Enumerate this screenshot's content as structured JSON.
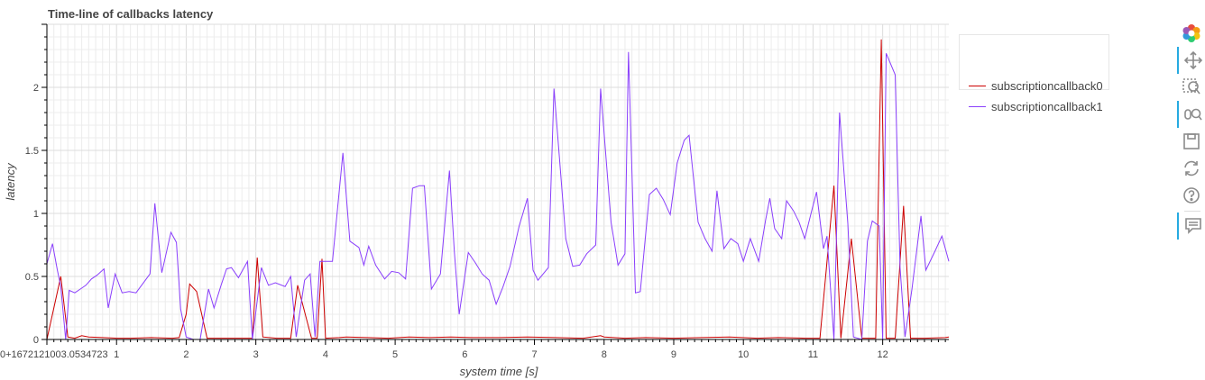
{
  "chart_data": {
    "type": "line",
    "title": "Time-line of callbacks latency",
    "xlabel": "system time [s]",
    "ylabel": "latency",
    "xlim": [
      0,
      12.95
    ],
    "ylim": [
      0,
      2.5
    ],
    "x_tick_labels": [
      "0+1672121003.0534723",
      "1",
      "2",
      "3",
      "4",
      "5",
      "6",
      "7",
      "8",
      "9",
      "10",
      "11",
      "12"
    ],
    "y_tick_labels": [
      "0",
      "0.5",
      "1",
      "1.5",
      "2"
    ],
    "grid": true,
    "legend_position": "top-right",
    "series": [
      {
        "name": "subscriptioncallback0",
        "color": "#cc0000",
        "points": [
          [
            0.0,
            0
          ],
          [
            0.2,
            0.5
          ],
          [
            0.3,
            0.02
          ],
          [
            0.4,
            0.01
          ],
          [
            0.5,
            0.03
          ],
          [
            0.6,
            0.02
          ],
          [
            0.8,
            0.015
          ],
          [
            1.0,
            0.01
          ],
          [
            1.2,
            0.01
          ],
          [
            1.5,
            0.015
          ],
          [
            1.8,
            0.01
          ],
          [
            1.9,
            0.015
          ],
          [
            2.0,
            0.2
          ],
          [
            2.05,
            0.44
          ],
          [
            2.15,
            0.38
          ],
          [
            2.3,
            0.01
          ],
          [
            2.6,
            0.01
          ],
          [
            2.95,
            0.01
          ],
          [
            3.02,
            0.65
          ],
          [
            3.1,
            0.02
          ],
          [
            3.3,
            0.01
          ],
          [
            3.5,
            0.01
          ],
          [
            3.6,
            0.43
          ],
          [
            3.8,
            0.01
          ],
          [
            3.88,
            0.01
          ],
          [
            3.95,
            0.64
          ],
          [
            4.0,
            0.01
          ],
          [
            4.2,
            0.015
          ],
          [
            4.3,
            0.02
          ],
          [
            4.6,
            0.015
          ],
          [
            4.9,
            0.01
          ],
          [
            5.2,
            0.02
          ],
          [
            5.5,
            0.015
          ],
          [
            5.8,
            0.02
          ],
          [
            6.1,
            0.015
          ],
          [
            6.5,
            0.015
          ],
          [
            6.9,
            0.02
          ],
          [
            7.3,
            0.015
          ],
          [
            7.7,
            0.01
          ],
          [
            7.95,
            0.03
          ],
          [
            8.0,
            0.02
          ],
          [
            8.3,
            0.01
          ],
          [
            8.6,
            0.015
          ],
          [
            9.0,
            0.01
          ],
          [
            9.4,
            0.015
          ],
          [
            9.8,
            0.02
          ],
          [
            10.2,
            0.01
          ],
          [
            10.5,
            0.015
          ],
          [
            10.9,
            0.01
          ],
          [
            11.1,
            0.01
          ],
          [
            11.3,
            1.22
          ],
          [
            11.4,
            0.01
          ],
          [
            11.55,
            0.8
          ],
          [
            11.7,
            0.01
          ],
          [
            11.9,
            0.01
          ],
          [
            11.98,
            2.38
          ],
          [
            12.05,
            0.01
          ],
          [
            12.18,
            0.01
          ],
          [
            12.3,
            1.06
          ],
          [
            12.4,
            0.01
          ],
          [
            12.6,
            0.01
          ],
          [
            12.9,
            0.015
          ],
          [
            12.95,
            0.02
          ]
        ]
      },
      {
        "name": "subscriptioncallback1",
        "color": "#8a3ffc",
        "points": [
          [
            0.0,
            0.6
          ],
          [
            0.08,
            0.76
          ],
          [
            0.15,
            0.55
          ],
          [
            0.2,
            0.42
          ],
          [
            0.27,
            0.0
          ],
          [
            0.32,
            0.39
          ],
          [
            0.4,
            0.37
          ],
          [
            0.48,
            0.4
          ],
          [
            0.56,
            0.43
          ],
          [
            0.64,
            0.48
          ],
          [
            0.72,
            0.51
          ],
          [
            0.82,
            0.56
          ],
          [
            0.88,
            0.25
          ],
          [
            0.98,
            0.52
          ],
          [
            1.08,
            0.37
          ],
          [
            1.18,
            0.38
          ],
          [
            1.28,
            0.37
          ],
          [
            1.48,
            0.52
          ],
          [
            1.55,
            1.08
          ],
          [
            1.65,
            0.53
          ],
          [
            1.78,
            0.85
          ],
          [
            1.86,
            0.77
          ],
          [
            1.92,
            0.24
          ],
          [
            2.0,
            0.02
          ],
          [
            2.1,
            0.0
          ],
          [
            2.2,
            0.0
          ],
          [
            2.32,
            0.4
          ],
          [
            2.4,
            0.25
          ],
          [
            2.5,
            0.43
          ],
          [
            2.58,
            0.56
          ],
          [
            2.65,
            0.57
          ],
          [
            2.75,
            0.49
          ],
          [
            2.88,
            0.62
          ],
          [
            2.95,
            0.0
          ],
          [
            3.08,
            0.57
          ],
          [
            3.18,
            0.43
          ],
          [
            3.28,
            0.45
          ],
          [
            3.42,
            0.42
          ],
          [
            3.5,
            0.5
          ],
          [
            3.58,
            0.02
          ],
          [
            3.7,
            0.47
          ],
          [
            3.78,
            0.52
          ],
          [
            3.85,
            0.02
          ],
          [
            3.92,
            0.62
          ],
          [
            4.03,
            0.62
          ],
          [
            4.1,
            0.62
          ],
          [
            4.25,
            1.48
          ],
          [
            4.35,
            0.78
          ],
          [
            4.48,
            0.73
          ],
          [
            4.55,
            0.59
          ],
          [
            4.62,
            0.74
          ],
          [
            4.72,
            0.59
          ],
          [
            4.85,
            0.48
          ],
          [
            4.95,
            0.54
          ],
          [
            5.05,
            0.53
          ],
          [
            5.15,
            0.48
          ],
          [
            5.25,
            1.2
          ],
          [
            5.35,
            1.22
          ],
          [
            5.42,
            1.22
          ],
          [
            5.52,
            0.4
          ],
          [
            5.65,
            0.52
          ],
          [
            5.78,
            1.34
          ],
          [
            5.85,
            0.7
          ],
          [
            5.92,
            0.2
          ],
          [
            6.05,
            0.69
          ],
          [
            6.15,
            0.61
          ],
          [
            6.25,
            0.52
          ],
          [
            6.35,
            0.47
          ],
          [
            6.45,
            0.28
          ],
          [
            6.55,
            0.42
          ],
          [
            6.65,
            0.58
          ],
          [
            6.78,
            0.9
          ],
          [
            6.9,
            1.12
          ],
          [
            6.98,
            0.55
          ],
          [
            7.05,
            0.47
          ],
          [
            7.2,
            0.57
          ],
          [
            7.28,
            1.99
          ],
          [
            7.45,
            0.8
          ],
          [
            7.55,
            0.58
          ],
          [
            7.65,
            0.59
          ],
          [
            7.75,
            0.68
          ],
          [
            7.88,
            0.75
          ],
          [
            7.95,
            1.99
          ],
          [
            8.1,
            0.93
          ],
          [
            8.2,
            0.59
          ],
          [
            8.3,
            0.68
          ],
          [
            8.35,
            2.28
          ],
          [
            8.45,
            0.37
          ],
          [
            8.52,
            0.38
          ],
          [
            8.65,
            1.15
          ],
          [
            8.75,
            1.2
          ],
          [
            8.85,
            1.11
          ],
          [
            8.95,
            0.99
          ],
          [
            9.05,
            1.4
          ],
          [
            9.15,
            1.58
          ],
          [
            9.22,
            1.62
          ],
          [
            9.35,
            0.93
          ],
          [
            9.45,
            0.8
          ],
          [
            9.55,
            0.7
          ],
          [
            9.62,
            1.18
          ],
          [
            9.72,
            0.72
          ],
          [
            9.82,
            0.8
          ],
          [
            9.92,
            0.76
          ],
          [
            10.0,
            0.62
          ],
          [
            10.1,
            0.8
          ],
          [
            10.22,
            0.62
          ],
          [
            10.32,
            0.95
          ],
          [
            10.38,
            1.12
          ],
          [
            10.45,
            0.88
          ],
          [
            10.55,
            0.8
          ],
          [
            10.62,
            1.1
          ],
          [
            10.72,
            1.02
          ],
          [
            10.8,
            0.93
          ],
          [
            10.88,
            0.8
          ],
          [
            10.98,
            1.02
          ],
          [
            11.05,
            1.17
          ],
          [
            11.15,
            0.72
          ],
          [
            11.2,
            0.82
          ],
          [
            11.3,
            0.0
          ],
          [
            11.38,
            1.8
          ],
          [
            11.5,
            0.92
          ],
          [
            11.58,
            0.02
          ],
          [
            11.7,
            0.0
          ],
          [
            11.78,
            0.78
          ],
          [
            11.85,
            0.94
          ],
          [
            11.95,
            0.9
          ],
          [
            12.0,
            0.0
          ],
          [
            12.05,
            2.27
          ],
          [
            12.18,
            2.1
          ],
          [
            12.25,
            0.57
          ],
          [
            12.32,
            0.02
          ],
          [
            12.42,
            0.4
          ],
          [
            12.55,
            0.98
          ],
          [
            12.62,
            0.55
          ],
          [
            12.75,
            0.7
          ],
          [
            12.85,
            0.82
          ],
          [
            12.95,
            0.62
          ]
        ]
      }
    ]
  },
  "toolbar": {
    "tools": [
      {
        "name": "bokeh-logo-icon",
        "active": false
      },
      {
        "name": "pan-icon",
        "active": true
      },
      {
        "name": "box-zoom-icon",
        "active": false
      },
      {
        "name": "wheel-zoom-icon",
        "active": true
      },
      {
        "name": "save-icon",
        "active": false
      },
      {
        "name": "reset-icon",
        "active": false
      },
      {
        "name": "help-icon",
        "active": false
      },
      {
        "name": "hover-icon",
        "active": true
      }
    ]
  }
}
